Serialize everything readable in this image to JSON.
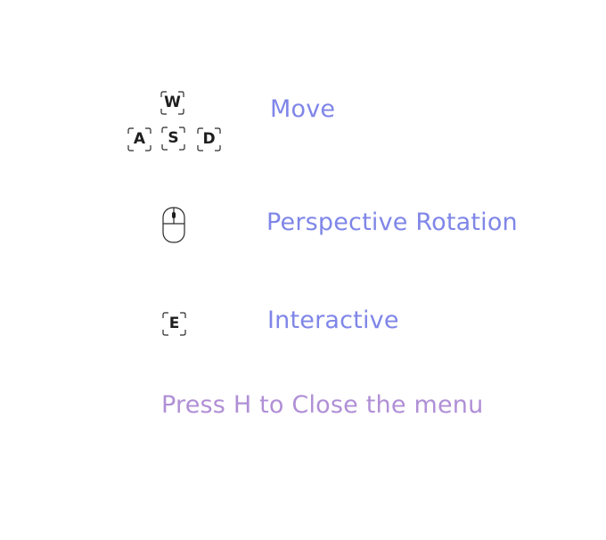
{
  "controls": {
    "move": {
      "keys": {
        "up": "W",
        "left": "A",
        "down": "S",
        "right": "D"
      },
      "label": "Move"
    },
    "rotate": {
      "icon": "mouse-icon",
      "label": "Perspective Rotation"
    },
    "interact": {
      "key": "E",
      "label": "Interactive"
    }
  },
  "hint": "Press H to Close the menu",
  "colors": {
    "label": "#7f86e8",
    "hint": "#b08fd6",
    "key_text": "#1e1e1e",
    "key_frame": "#2a2a2a"
  }
}
